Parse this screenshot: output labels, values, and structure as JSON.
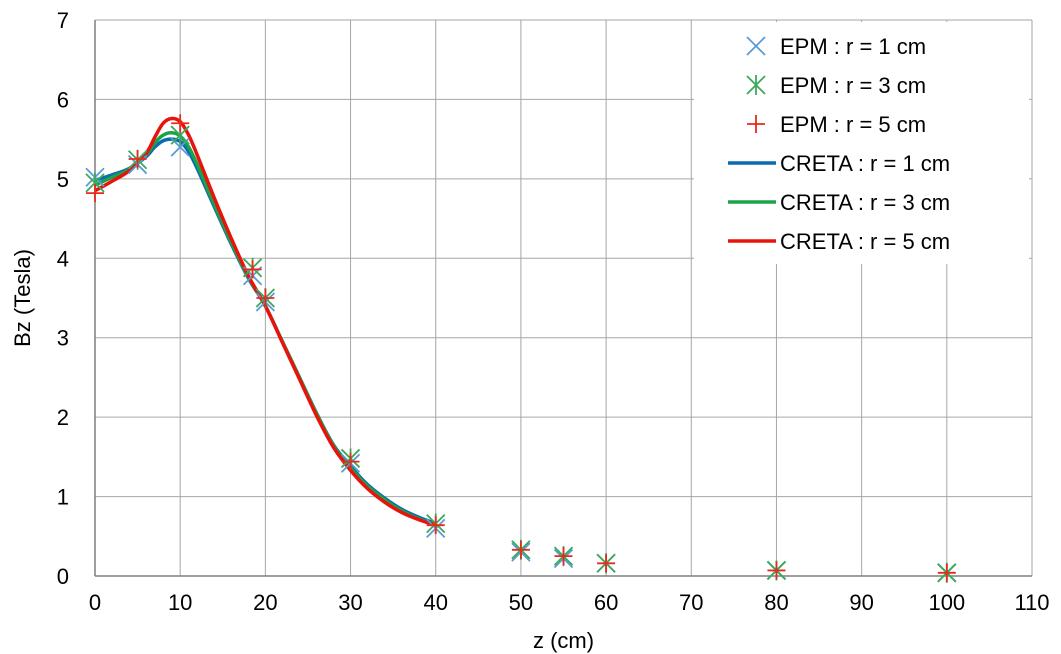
{
  "chart_data": {
    "type": "line",
    "xlabel": "z (cm)",
    "ylabel": "Bz (Tesla)",
    "xlim": [
      0,
      110
    ],
    "ylim": [
      0,
      7
    ],
    "x_ticks": [
      0,
      10,
      20,
      30,
      40,
      50,
      60,
      70,
      80,
      90,
      100,
      110
    ],
    "y_ticks": [
      0,
      1,
      2,
      3,
      4,
      5,
      6,
      7
    ],
    "grid": true,
    "legend_position": "top-right",
    "series": [
      {
        "name": "EPM : r = 1 cm",
        "kind": "markers",
        "marker": "x",
        "color": "#5b9bd5",
        "points": [
          [
            0,
            5.02
          ],
          [
            5,
            5.18
          ],
          [
            10,
            5.4
          ],
          [
            18.5,
            3.78
          ],
          [
            20,
            3.45
          ],
          [
            30,
            1.42
          ],
          [
            40,
            0.6
          ],
          [
            50,
            0.3
          ],
          [
            55,
            0.22
          ],
          [
            60,
            0.16
          ],
          [
            80,
            0.07
          ],
          [
            100,
            0.04
          ]
        ]
      },
      {
        "name": "EPM : r = 3 cm",
        "kind": "markers",
        "marker": "star",
        "color": "#3aaa5a",
        "points": [
          [
            0,
            4.95
          ],
          [
            5,
            5.24
          ],
          [
            10,
            5.55
          ],
          [
            18.5,
            3.88
          ],
          [
            20,
            3.5
          ],
          [
            30,
            1.48
          ],
          [
            40,
            0.66
          ],
          [
            50,
            0.33
          ],
          [
            55,
            0.25
          ],
          [
            60,
            0.16
          ],
          [
            80,
            0.07
          ],
          [
            100,
            0.04
          ]
        ]
      },
      {
        "name": "EPM : r = 5 cm",
        "kind": "markers",
        "marker": "plus",
        "color": "#e8291c",
        "points": [
          [
            0,
            4.82
          ],
          [
            5,
            5.25
          ],
          [
            10,
            5.7
          ],
          [
            18.5,
            3.86
          ],
          [
            20,
            3.5
          ],
          [
            30,
            1.44
          ],
          [
            40,
            0.64
          ],
          [
            50,
            0.33
          ],
          [
            55,
            0.25
          ],
          [
            60,
            0.16
          ],
          [
            80,
            0.07
          ],
          [
            100,
            0.04
          ]
        ]
      },
      {
        "name": "CRETA : r = 1 cm",
        "kind": "line",
        "color": "#0b6bb0",
        "points": [
          [
            0,
            4.98
          ],
          [
            2,
            5.05
          ],
          [
            4,
            5.13
          ],
          [
            6,
            5.28
          ],
          [
            7,
            5.4
          ],
          [
            8,
            5.48
          ],
          [
            9,
            5.5
          ],
          [
            10,
            5.47
          ],
          [
            11,
            5.34
          ],
          [
            12,
            5.13
          ],
          [
            14,
            4.65
          ],
          [
            16,
            4.18
          ],
          [
            18,
            3.75
          ],
          [
            20,
            3.4
          ],
          [
            22,
            2.95
          ],
          [
            24,
            2.5
          ],
          [
            26,
            2.05
          ],
          [
            28,
            1.65
          ],
          [
            30,
            1.38
          ],
          [
            32,
            1.15
          ],
          [
            34,
            0.98
          ],
          [
            36,
            0.84
          ],
          [
            38,
            0.74
          ],
          [
            40,
            0.66
          ]
        ]
      },
      {
        "name": "CRETA : r = 3 cm",
        "kind": "line",
        "color": "#1aa34a",
        "points": [
          [
            0,
            4.92
          ],
          [
            2,
            5.02
          ],
          [
            4,
            5.12
          ],
          [
            6,
            5.3
          ],
          [
            7,
            5.45
          ],
          [
            8,
            5.55
          ],
          [
            9,
            5.58
          ],
          [
            10,
            5.54
          ],
          [
            11,
            5.4
          ],
          [
            12,
            5.18
          ],
          [
            14,
            4.68
          ],
          [
            16,
            4.2
          ],
          [
            18,
            3.76
          ],
          [
            20,
            3.4
          ],
          [
            22,
            2.95
          ],
          [
            24,
            2.5
          ],
          [
            26,
            2.05
          ],
          [
            28,
            1.64
          ],
          [
            30,
            1.36
          ],
          [
            32,
            1.13
          ],
          [
            34,
            0.96
          ],
          [
            36,
            0.82
          ],
          [
            38,
            0.72
          ],
          [
            40,
            0.65
          ]
        ]
      },
      {
        "name": "CRETA : r = 5 cm",
        "kind": "line",
        "color": "#e8130c",
        "points": [
          [
            0,
            4.85
          ],
          [
            2,
            4.97
          ],
          [
            4,
            5.1
          ],
          [
            6,
            5.32
          ],
          [
            7,
            5.52
          ],
          [
            8,
            5.7
          ],
          [
            9,
            5.76
          ],
          [
            10,
            5.72
          ],
          [
            11,
            5.55
          ],
          [
            12,
            5.3
          ],
          [
            14,
            4.76
          ],
          [
            16,
            4.25
          ],
          [
            18,
            3.78
          ],
          [
            20,
            3.4
          ],
          [
            22,
            2.94
          ],
          [
            24,
            2.48
          ],
          [
            26,
            2.02
          ],
          [
            28,
            1.62
          ],
          [
            30,
            1.33
          ],
          [
            32,
            1.1
          ],
          [
            34,
            0.93
          ],
          [
            36,
            0.8
          ],
          [
            38,
            0.71
          ],
          [
            40,
            0.64
          ]
        ]
      }
    ]
  }
}
